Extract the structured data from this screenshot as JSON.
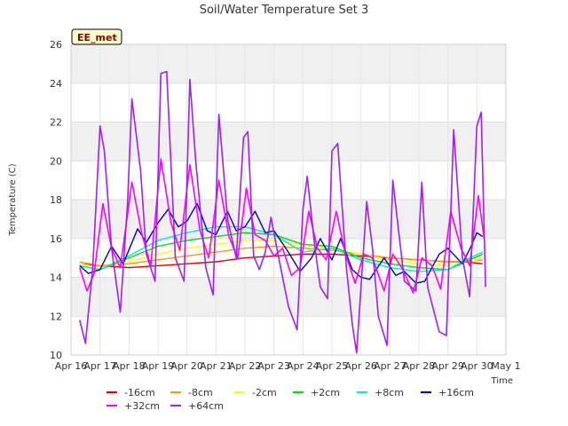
{
  "chart_data": {
    "type": "line",
    "title": "Soil/Water Temperature Set 3",
    "xlabel": "Time",
    "ylabel": "Temperature (C)",
    "badge": "EE_met",
    "ylim": [
      10,
      26
    ],
    "yticks": [
      10,
      12,
      14,
      16,
      18,
      20,
      22,
      24,
      26
    ],
    "xlim": [
      0,
      15
    ],
    "xticks": [
      {
        "v": 0,
        "label": "Apr 16"
      },
      {
        "v": 1,
        "label": "Apr 17"
      },
      {
        "v": 2,
        "label": "Apr 18"
      },
      {
        "v": 3,
        "label": "Apr 19"
      },
      {
        "v": 4,
        "label": "Apr 20"
      },
      {
        "v": 5,
        "label": "Apr 21"
      },
      {
        "v": 6,
        "label": "Apr 22"
      },
      {
        "v": 7,
        "label": "Apr 23"
      },
      {
        "v": 8,
        "label": "Apr 24"
      },
      {
        "v": 9,
        "label": "Apr 25"
      },
      {
        "v": 10,
        "label": "Apr 26"
      },
      {
        "v": 11,
        "label": "Apr 27"
      },
      {
        "v": 12,
        "label": "Apr 28"
      },
      {
        "v": 13,
        "label": "Apr 29"
      },
      {
        "v": 14,
        "label": "Apr 30"
      },
      {
        "v": 15,
        "label": "May 1"
      }
    ],
    "grid": true,
    "legend_position": "bottom",
    "series": [
      {
        "name": "-16cm",
        "color": "#e00000",
        "x": [
          0.3,
          1,
          2,
          3,
          4,
          5,
          6,
          7,
          8,
          9,
          10,
          11,
          12,
          13,
          13.6,
          14.2
        ],
        "y": [
          14.7,
          14.6,
          14.5,
          14.6,
          14.7,
          14.8,
          15.0,
          15.1,
          15.2,
          15.2,
          15.1,
          15.0,
          14.9,
          14.8,
          14.8,
          14.7
        ]
      },
      {
        "name": "-8cm",
        "color": "#ff9900",
        "x": [
          0.3,
          1,
          2,
          3,
          4,
          5,
          6,
          7,
          8,
          9,
          10,
          11,
          12,
          13,
          13.6,
          14.2
        ],
        "y": [
          14.8,
          14.6,
          14.7,
          14.9,
          15.1,
          15.3,
          15.5,
          15.6,
          15.5,
          15.4,
          15.2,
          15.0,
          14.9,
          14.8,
          14.8,
          14.9
        ]
      },
      {
        "name": "-2cm",
        "color": "#ffff00",
        "x": [
          0.3,
          1,
          2,
          3,
          4,
          5,
          6,
          7,
          8,
          9,
          10,
          11,
          12,
          13,
          13.6,
          14.2
        ],
        "y": [
          14.7,
          14.5,
          14.8,
          15.2,
          15.5,
          15.7,
          15.9,
          15.9,
          15.7,
          15.5,
          15.2,
          14.9,
          14.7,
          14.6,
          14.7,
          15.0
        ]
      },
      {
        "name": "+2cm",
        "color": "#00e000",
        "x": [
          0.3,
          1,
          2,
          3,
          4,
          5,
          6,
          7,
          8,
          9,
          10,
          11,
          12,
          13,
          13.6,
          14.2
        ],
        "y": [
          14.6,
          14.4,
          15.0,
          15.6,
          15.9,
          16.1,
          16.3,
          16.2,
          15.7,
          15.6,
          15.0,
          14.7,
          14.5,
          14.4,
          14.8,
          15.2
        ]
      },
      {
        "name": "+8cm",
        "color": "#00e5ee",
        "x": [
          0.3,
          1,
          2,
          3,
          4,
          5,
          6,
          7,
          8,
          9,
          10,
          11,
          12,
          13,
          13.6,
          14.2
        ],
        "y": [
          14.6,
          14.4,
          15.1,
          15.9,
          16.3,
          16.6,
          16.6,
          16.2,
          15.3,
          15.5,
          14.9,
          14.5,
          14.3,
          14.4,
          14.9,
          15.3
        ]
      },
      {
        "name": "+16cm",
        "color": "#0000cc",
        "x": [
          0.3,
          0.6,
          1.0,
          1.4,
          1.8,
          2.3,
          2.6,
          3.0,
          3.35,
          3.7,
          4.0,
          4.35,
          4.7,
          5.0,
          5.4,
          5.7,
          6.0,
          6.35,
          6.7,
          7.0,
          7.5,
          7.9,
          8.3,
          8.6,
          9.0,
          9.3,
          9.7,
          10.0,
          10.3,
          10.8,
          11.2,
          11.5,
          11.9,
          12.2,
          12.7,
          13.0,
          13.5,
          13.8,
          14.0,
          14.2
        ],
        "y": [
          14.6,
          14.2,
          14.4,
          15.6,
          14.7,
          16.5,
          15.8,
          16.8,
          17.5,
          16.6,
          16.9,
          17.8,
          16.4,
          16.2,
          17.4,
          16.4,
          16.6,
          17.4,
          16.3,
          16.4,
          15.3,
          14.3,
          15.0,
          16.0,
          14.9,
          16.0,
          14.4,
          14.0,
          13.9,
          15.0,
          14.1,
          14.3,
          13.7,
          13.8,
          15.2,
          15.5,
          14.7,
          15.6,
          16.3,
          16.1
        ]
      },
      {
        "name": "+32cm",
        "color": "#ff00ff",
        "x": [
          0.3,
          0.55,
          0.8,
          1.1,
          1.4,
          1.7,
          2.1,
          2.45,
          2.75,
          3.1,
          3.45,
          3.75,
          4.1,
          4.45,
          4.75,
          5.1,
          5.45,
          5.75,
          6.05,
          6.35,
          6.7,
          7.0,
          7.3,
          7.6,
          7.9,
          8.2,
          8.5,
          8.8,
          9.15,
          9.45,
          9.8,
          10.1,
          10.4,
          10.8,
          11.1,
          11.45,
          11.8,
          12.1,
          12.45,
          12.75,
          13.1,
          13.45,
          13.75,
          14.05,
          14.25
        ],
        "y": [
          14.5,
          13.3,
          14.2,
          17.8,
          15.5,
          14.5,
          18.9,
          16.2,
          14.6,
          20.1,
          16.8,
          15.4,
          19.8,
          16.4,
          15.0,
          19.0,
          16.1,
          15.0,
          18.6,
          16.2,
          15.9,
          15.1,
          15.5,
          14.1,
          14.5,
          17.4,
          15.5,
          14.9,
          17.4,
          15.3,
          13.7,
          15.2,
          15.0,
          13.3,
          15.2,
          14.4,
          13.2,
          15.0,
          14.6,
          13.4,
          17.4,
          15.5,
          14.6,
          18.2,
          16.0
        ]
      },
      {
        "name": "+64cm",
        "color": "#a020f0",
        "x": [
          0.3,
          0.5,
          0.75,
          1.0,
          1.15,
          1.4,
          1.7,
          1.95,
          2.1,
          2.4,
          2.6,
          2.9,
          3.1,
          3.3,
          3.6,
          3.9,
          4.1,
          4.3,
          4.65,
          4.9,
          5.1,
          5.4,
          5.7,
          5.95,
          6.1,
          6.3,
          6.5,
          6.7,
          6.9,
          7.1,
          7.5,
          7.8,
          8.0,
          8.15,
          8.4,
          8.6,
          8.85,
          9.0,
          9.2,
          9.5,
          9.7,
          9.85,
          10.2,
          10.4,
          10.6,
          10.9,
          11.1,
          11.3,
          11.5,
          11.9,
          12.1,
          12.3,
          12.7,
          12.95,
          13.2,
          13.5,
          13.75,
          14.0,
          14.15,
          14.3
        ],
        "y": [
          11.8,
          10.6,
          14.5,
          21.8,
          20.5,
          15.5,
          12.2,
          17.8,
          23.2,
          19.5,
          15.2,
          13.8,
          24.5,
          24.6,
          15.0,
          13.8,
          24.2,
          20.0,
          14.5,
          13.1,
          22.4,
          17.0,
          15.0,
          21.2,
          21.5,
          15.1,
          14.4,
          15.3,
          17.1,
          15.5,
          12.5,
          11.3,
          17.5,
          19.2,
          15.7,
          13.5,
          12.9,
          20.5,
          20.9,
          14.5,
          11.6,
          10.1,
          17.9,
          15.5,
          12.0,
          10.5,
          19.0,
          16.4,
          13.8,
          13.3,
          18.9,
          13.5,
          11.2,
          11.0,
          21.6,
          15.0,
          13.0,
          21.8,
          22.5,
          13.5
        ]
      }
    ]
  }
}
